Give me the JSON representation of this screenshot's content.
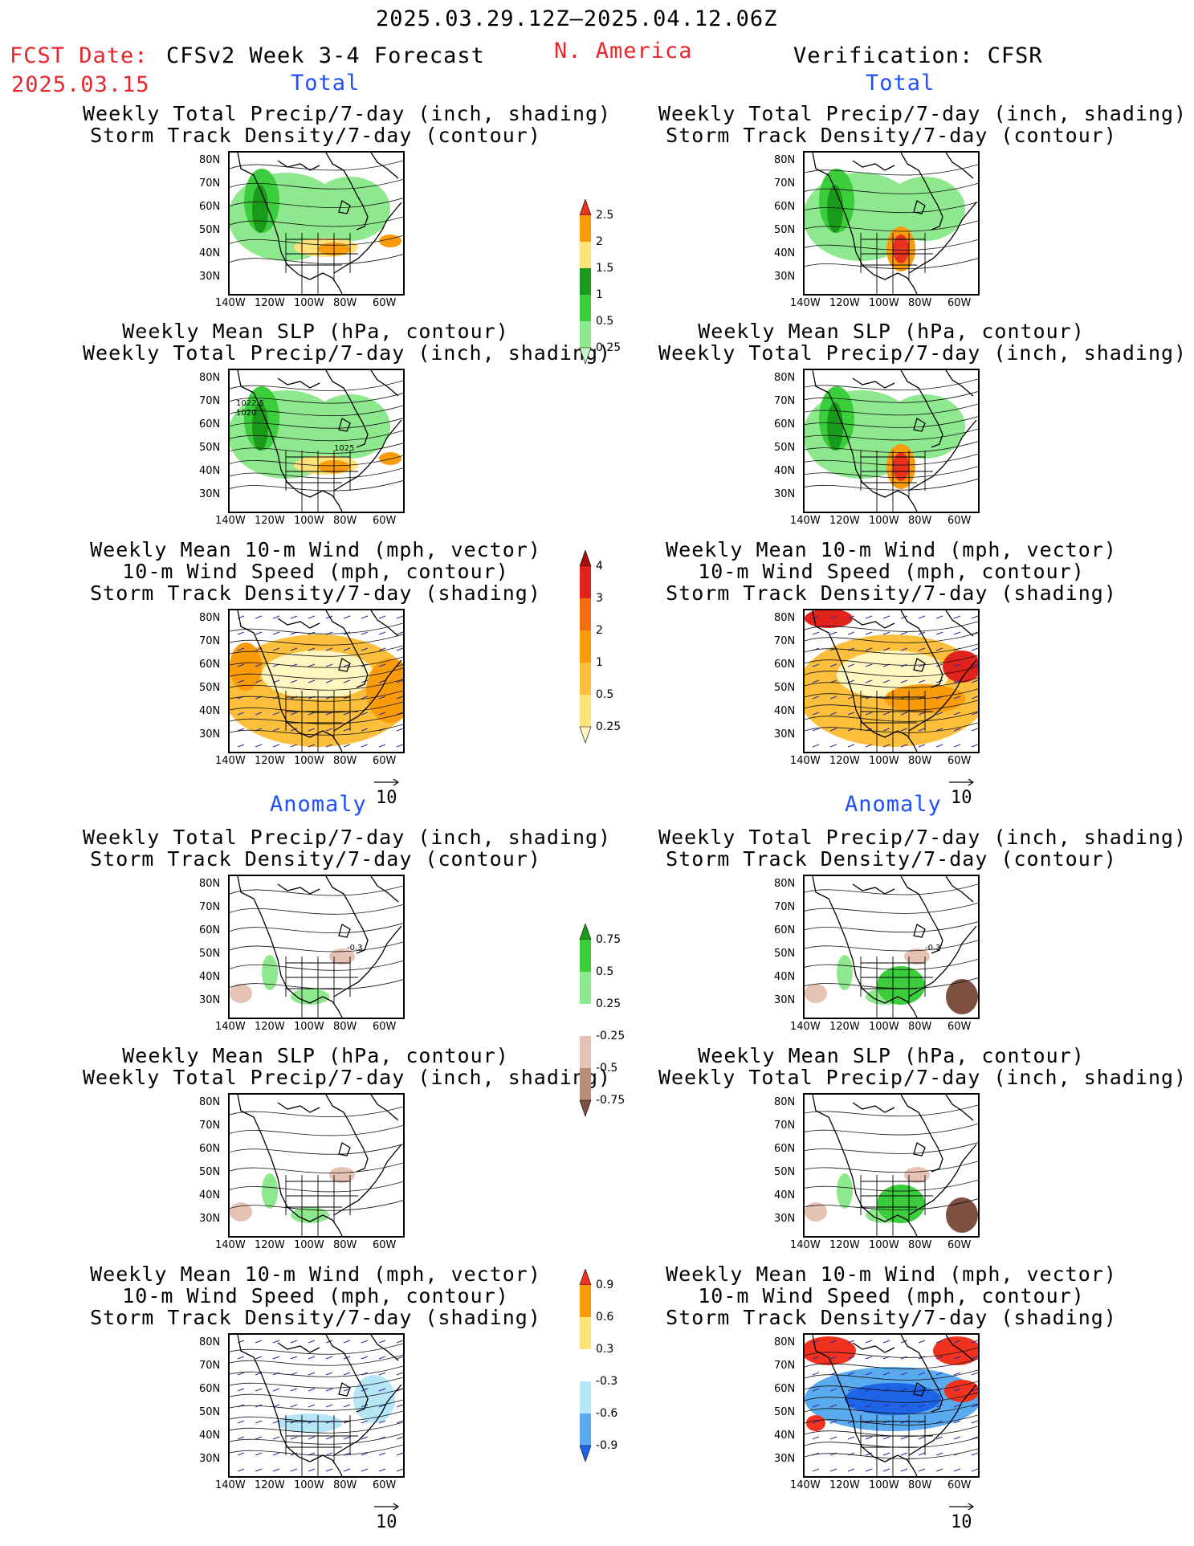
{
  "header": {
    "period": "2025.03.29.12Z–2025.04.12.06Z",
    "fcst_label": "FCST Date:",
    "fcst_date": "2025.03.15",
    "forecast_title": "CFSv2 Week 3-4 Forecast",
    "region": "N. America",
    "verification": "Verification: CFSR"
  },
  "sections": {
    "total": "Total",
    "anomaly": "Anomaly"
  },
  "panel_titles": {
    "precip_storm": [
      "Weekly Total Precip/7-day (inch, shading)",
      "Storm Track Density/7-day (contour)"
    ],
    "slp_precip": [
      "Weekly Mean SLP (hPa, contour)",
      "Weekly Total Precip/7-day (inch, shading)"
    ],
    "wind_storm": [
      "Weekly Mean 10-m Wind (mph, vector)",
      "10-m Wind Speed (mph, contour)",
      "Storm Track Density/7-day (shading)"
    ]
  },
  "axes": {
    "lat_ticks": [
      "80N",
      "70N",
      "60N",
      "50N",
      "40N",
      "30N"
    ],
    "lon_ticks": [
      "140W",
      "120W",
      "100W",
      "80W",
      "60W"
    ]
  },
  "vector_key": "10",
  "contour_labels": {
    "slp_total": [
      "1022.5",
      "1020",
      "1025"
    ],
    "anomaly_storm": [
      "-0.3"
    ]
  },
  "colorbars": {
    "precip_total": {
      "labels": [
        "2.5",
        "2",
        "1.5",
        "1",
        "0.5",
        "0.25"
      ],
      "colors": [
        "#e8321e",
        "#fa9b0a",
        "#fde27a",
        "#1a9a1a",
        "#3ccd3c",
        "#8ee98e",
        "#c8f5c8"
      ]
    },
    "storm_total": {
      "labels": [
        "4",
        "3",
        "2",
        "1",
        "0.5",
        "0.25"
      ],
      "colors": [
        "#a50f0f",
        "#e2231c",
        "#f46d12",
        "#fa9b0a",
        "#fbbf3c",
        "#fde27a",
        "#fff6c0"
      ]
    },
    "precip_anom": {
      "labels": [
        "0.75",
        "0.5",
        "0.25",
        "-0.25",
        "-0.5",
        "-0.75"
      ],
      "colors": [
        "#1a9a1a",
        "#3ccd3c",
        "#8ee98e",
        "#ffffff",
        "#e6c3b4",
        "#b98c78",
        "#7d5040"
      ]
    },
    "storm_anom": {
      "labels": [
        "0.9",
        "0.6",
        "0.3",
        "-0.3",
        "-0.6",
        "-0.9"
      ],
      "colors": [
        "#f0321e",
        "#fa9b0a",
        "#fde27a",
        "#ffffff",
        "#b4e6f5",
        "#5aaaf0",
        "#1e64e6"
      ]
    }
  }
}
